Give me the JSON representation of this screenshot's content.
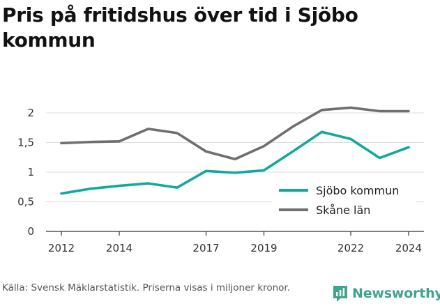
{
  "title": "Pris på fritidshus över tid i Sjöbo kommun",
  "source": "Källa: Svensk Mäklarstatistik. Priserna visas i miljoner kronor.",
  "brand": {
    "name": "Newsworthy",
    "icon": "newsworthy-logo-icon",
    "color": "#3fa38f"
  },
  "chart_data": {
    "type": "line",
    "title": "Pris på fritidshus över tid i Sjöbo kommun",
    "xlabel": "",
    "ylabel": "",
    "x": [
      2012,
      2013,
      2014,
      2015,
      2016,
      2017,
      2018,
      2019,
      2020,
      2021,
      2022,
      2023,
      2024
    ],
    "xticks": [
      2012,
      2014,
      2017,
      2019,
      2022,
      2024
    ],
    "yticks": [
      0,
      0.5,
      1,
      1.5,
      2
    ],
    "ytick_labels": [
      "0",
      "0,5",
      "1",
      "1,5",
      "2"
    ],
    "xlim": [
      2012,
      2024
    ],
    "ylim": [
      0,
      2
    ],
    "grid": true,
    "legend_position": "bottom-right",
    "series": [
      {
        "name": "Sjöbo kommun",
        "color": "#13a89e",
        "values": [
          0.64,
          0.72,
          0.77,
          0.81,
          0.74,
          1.02,
          0.99,
          1.03,
          1.35,
          1.68,
          1.56,
          1.24,
          1.42
        ]
      },
      {
        "name": "Skåne län",
        "color": "#6e6e73",
        "values": [
          1.49,
          1.51,
          1.52,
          1.73,
          1.66,
          1.35,
          1.22,
          1.44,
          1.77,
          2.05,
          2.09,
          2.03,
          2.03
        ]
      }
    ]
  }
}
